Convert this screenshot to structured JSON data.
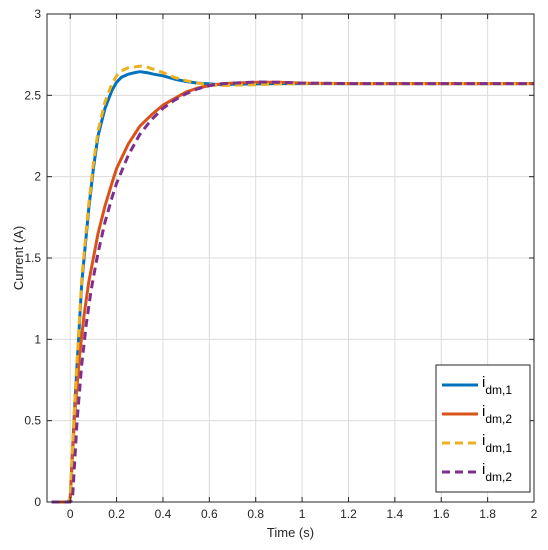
{
  "chart_data": {
    "type": "line",
    "title": "",
    "xlabel": "Time (s)",
    "ylabel": "Current (A)",
    "xlim": [
      -0.1,
      2.0
    ],
    "ylim": [
      0,
      3
    ],
    "xticks": [
      0,
      0.2,
      0.4,
      0.6,
      0.8,
      1,
      1.2,
      1.4,
      1.6,
      1.8,
      2
    ],
    "xtick_labels": [
      "0",
      "0.2",
      "0.4",
      "0.6",
      "0.8",
      "1",
      "1.2",
      "1.4",
      "1.6",
      "1.8",
      "2"
    ],
    "yticks": [
      0,
      0.5,
      1,
      1.5,
      2,
      2.5,
      3
    ],
    "ytick_labels": [
      "0",
      "0.5",
      "1",
      "1.5",
      "2",
      "2.5",
      "3"
    ],
    "grid": true,
    "legend_position": "bottom-right",
    "series": [
      {
        "name": "i",
        "name_sub": "dm,1",
        "color": "#0072BD",
        "style": "solid",
        "x": [
          -0.08,
          -0.01,
          0.0,
          0.02,
          0.05,
          0.08,
          0.1,
          0.12,
          0.15,
          0.18,
          0.2,
          0.22,
          0.25,
          0.28,
          0.3,
          0.33,
          0.36,
          0.4,
          0.45,
          0.5,
          0.55,
          0.6,
          0.65,
          0.7,
          0.8,
          0.9,
          1.0,
          1.2,
          1.5,
          2.0
        ],
        "y": [
          0,
          0,
          0.02,
          0.6,
          1.35,
          1.8,
          2.05,
          2.25,
          2.42,
          2.53,
          2.58,
          2.61,
          2.63,
          2.64,
          2.645,
          2.64,
          2.63,
          2.62,
          2.6,
          2.585,
          2.575,
          2.57,
          2.565,
          2.568,
          2.57,
          2.572,
          2.572,
          2.572,
          2.572,
          2.572
        ]
      },
      {
        "name": "i",
        "name_sub": "dm,2",
        "color": "#D95319",
        "style": "solid",
        "x": [
          -0.08,
          -0.01,
          0.0,
          0.02,
          0.04,
          0.06,
          0.08,
          0.1,
          0.12,
          0.15,
          0.18,
          0.2,
          0.25,
          0.3,
          0.35,
          0.4,
          0.45,
          0.5,
          0.55,
          0.6,
          0.65,
          0.7,
          0.8,
          0.9,
          1.0,
          1.2,
          1.5,
          2.0
        ],
        "y": [
          0,
          0,
          0.02,
          0.55,
          0.9,
          1.15,
          1.35,
          1.5,
          1.65,
          1.82,
          1.96,
          2.05,
          2.2,
          2.31,
          2.38,
          2.44,
          2.48,
          2.52,
          2.545,
          2.56,
          2.57,
          2.575,
          2.58,
          2.58,
          2.575,
          2.572,
          2.572,
          2.572
        ]
      },
      {
        "name": "i",
        "name_sub": "dm,1",
        "color": "#EDB120",
        "style": "dashed",
        "x": [
          -0.08,
          -0.01,
          0.0,
          0.02,
          0.05,
          0.08,
          0.1,
          0.12,
          0.15,
          0.18,
          0.2,
          0.22,
          0.25,
          0.28,
          0.3,
          0.33,
          0.36,
          0.4,
          0.45,
          0.5,
          0.55,
          0.6,
          0.65,
          0.7,
          0.8,
          0.9,
          1.0,
          1.2,
          1.5,
          2.0
        ],
        "y": [
          0,
          0,
          0.02,
          0.62,
          1.38,
          1.83,
          2.08,
          2.28,
          2.46,
          2.57,
          2.62,
          2.65,
          2.67,
          2.675,
          2.68,
          2.675,
          2.66,
          2.64,
          2.61,
          2.59,
          2.575,
          2.565,
          2.56,
          2.562,
          2.565,
          2.57,
          2.572,
          2.572,
          2.572,
          2.572
        ]
      },
      {
        "name": "i",
        "name_sub": "dm,2",
        "color": "#7E2F8E",
        "style": "dashed",
        "x": [
          -0.08,
          0.0,
          0.01,
          0.03,
          0.05,
          0.07,
          0.09,
          0.1,
          0.12,
          0.15,
          0.18,
          0.2,
          0.25,
          0.3,
          0.35,
          0.4,
          0.45,
          0.5,
          0.55,
          0.6,
          0.65,
          0.7,
          0.8,
          0.9,
          1.0,
          1.2,
          1.5,
          2.0
        ],
        "y": [
          0,
          0,
          0.02,
          0.5,
          0.85,
          1.1,
          1.3,
          1.38,
          1.53,
          1.72,
          1.87,
          1.96,
          2.13,
          2.26,
          2.35,
          2.42,
          2.47,
          2.51,
          2.54,
          2.56,
          2.57,
          2.575,
          2.582,
          2.58,
          2.575,
          2.572,
          2.572,
          2.572
        ]
      }
    ]
  }
}
